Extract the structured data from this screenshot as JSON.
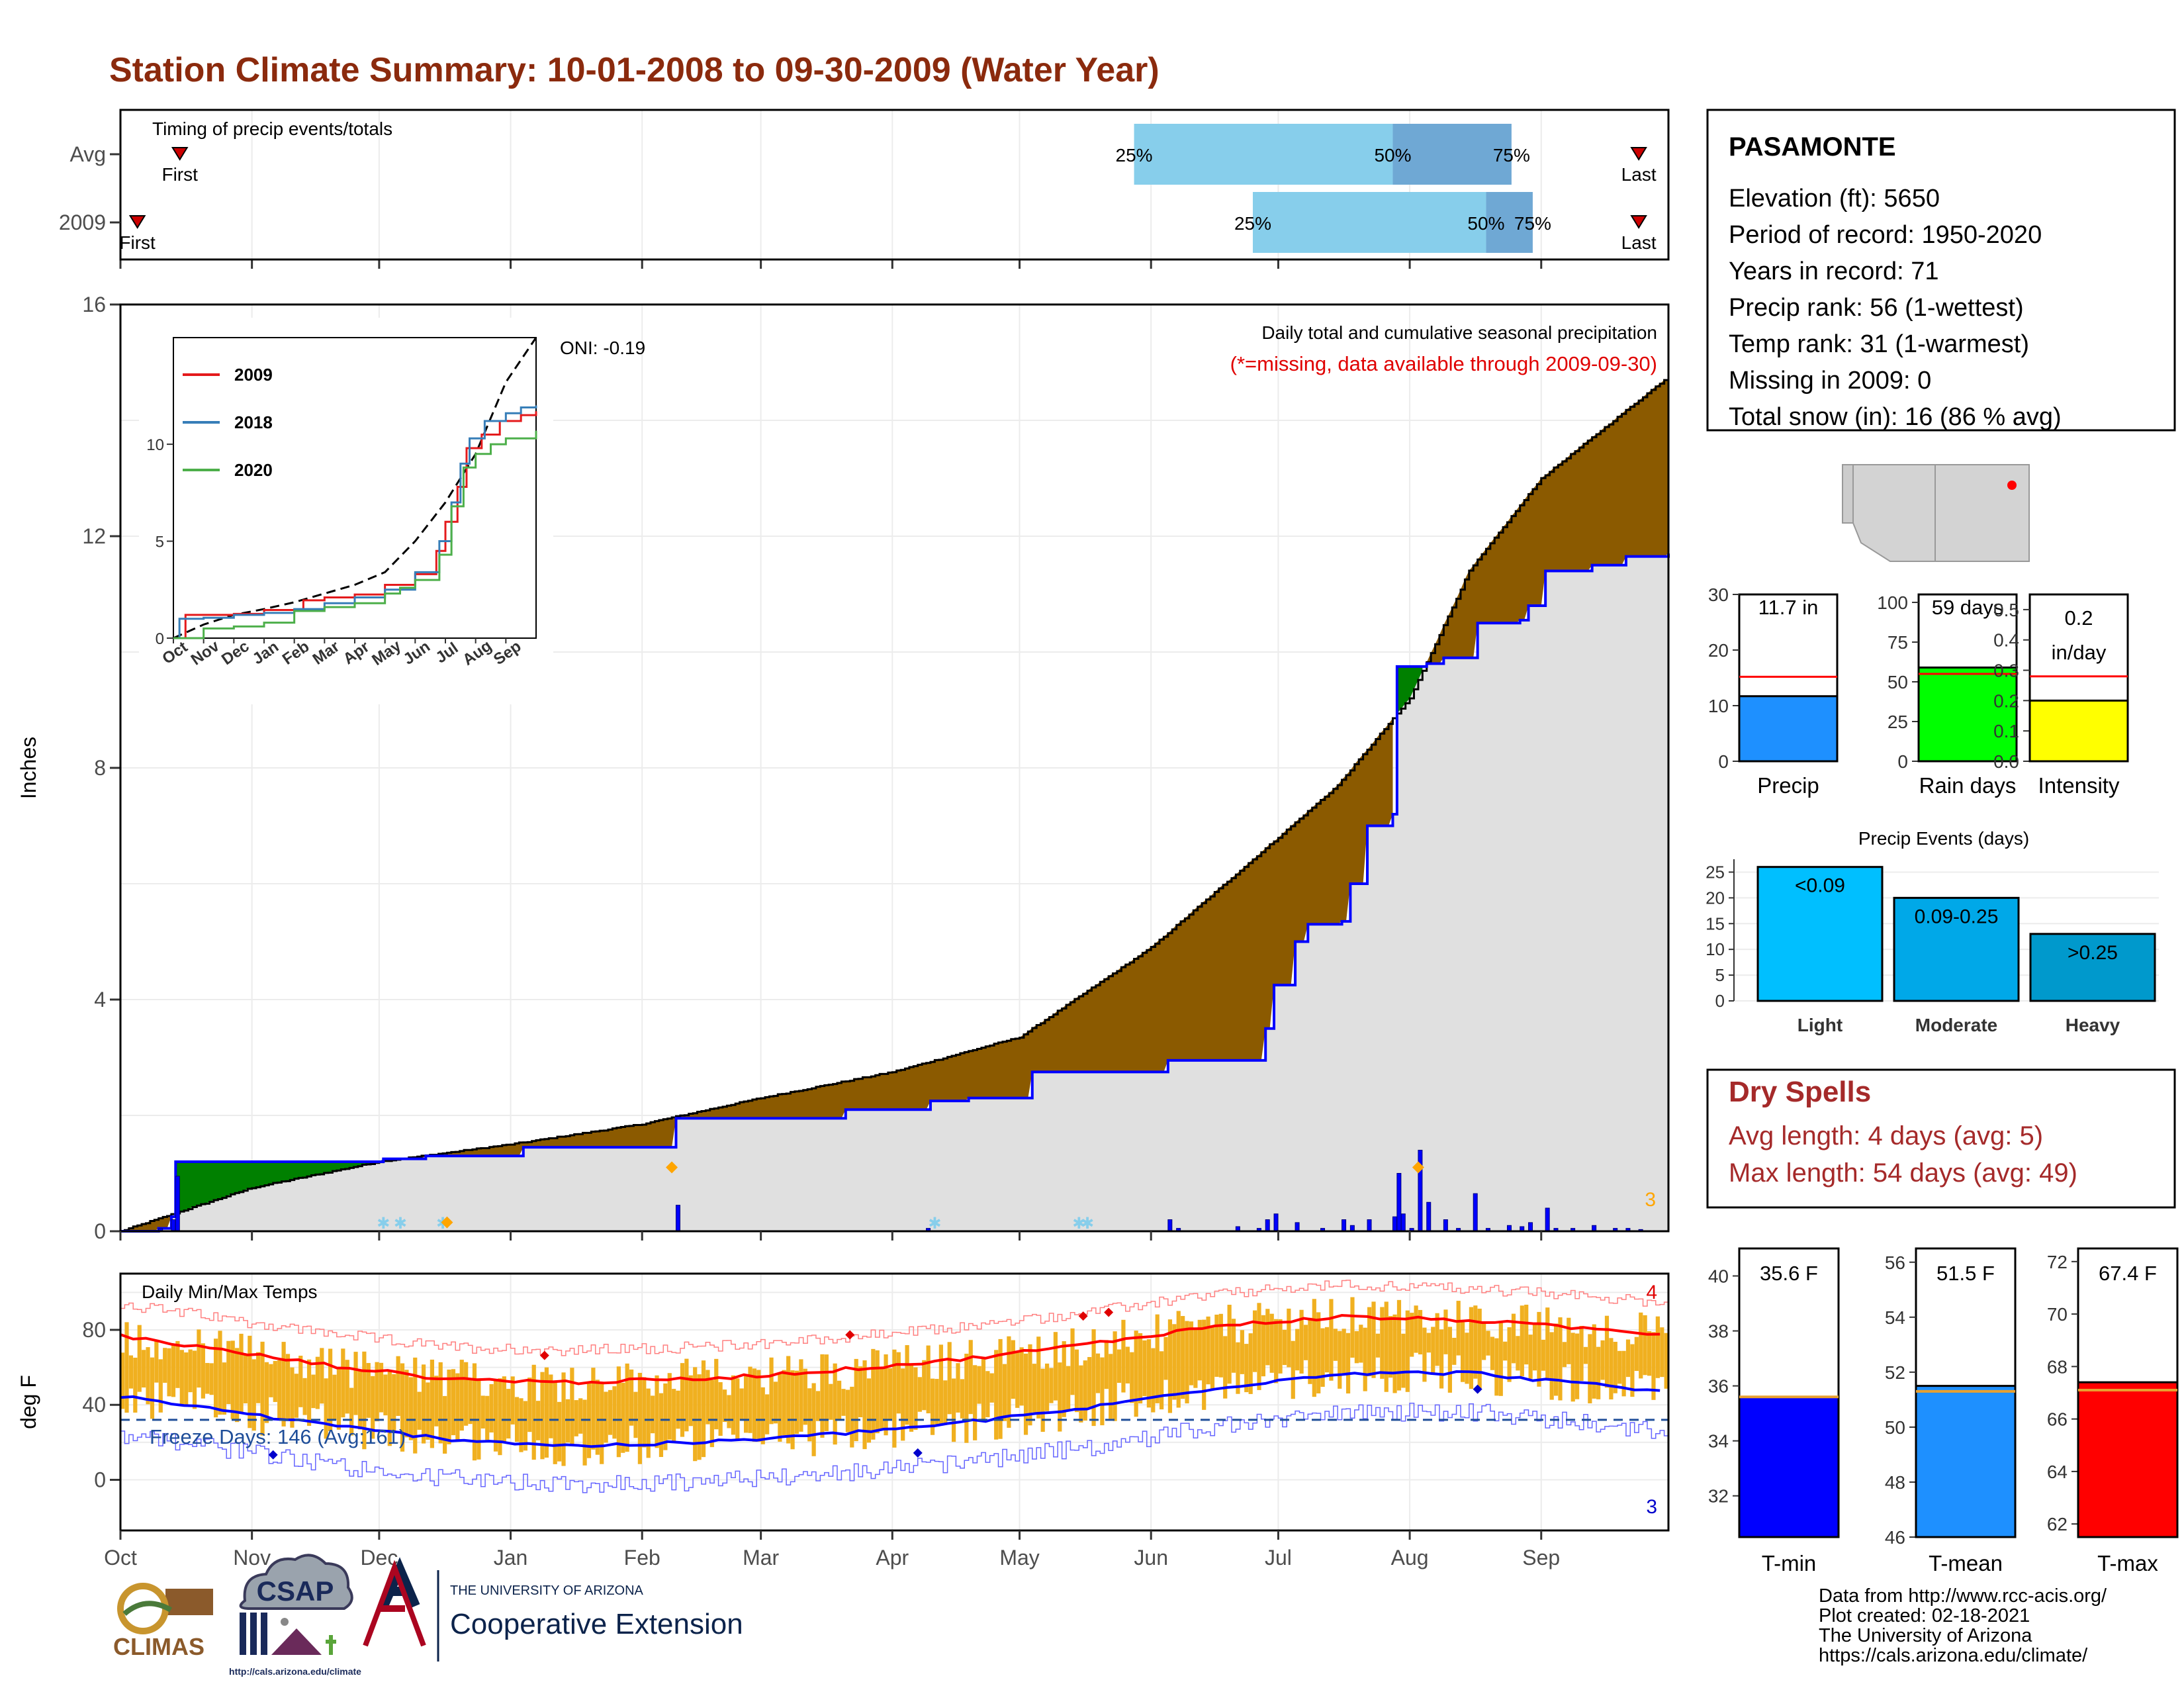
{
  "title": "Station Climate Summary: 10-01-2008 to 09-30-2009 (Water Year)",
  "timing": {
    "caption": "Timing of precip events/totals",
    "rows": [
      {
        "label": "Avg",
        "first_day": 14,
        "last_day": 358,
        "q25_day": 239,
        "q50_day": 300,
        "q75_day": 328,
        "first_label": "First",
        "last_label": "Last",
        "q25_label": "25%",
        "q50_label": "50%",
        "q75_label": "75%"
      },
      {
        "label": "2009",
        "first_day": 4,
        "last_day": 358,
        "q25_day": 267,
        "q50_day": 322,
        "q75_day": 333,
        "first_label": "First",
        "last_label": "Last",
        "q25_label": "25%",
        "q50_label": "50%",
        "q75_label": "75%"
      }
    ]
  },
  "main": {
    "ylabel": "Inches",
    "caption1": "Daily total and cumulative seasonal precipitation",
    "caption2": "(*=missing, data available through 2009-09-30)",
    "oni": "ONI: -0.19",
    "corner_count": "3",
    "yticks": [
      "0",
      "4",
      "8",
      "12",
      "16"
    ]
  },
  "inset": {
    "legend": [
      "2009",
      "2018",
      "2020"
    ],
    "yticks": [
      "0",
      "5",
      "10"
    ],
    "xticks": [
      "Oct",
      "Nov",
      "Dec",
      "Jan",
      "Feb",
      "Mar",
      "Apr",
      "May",
      "Jun",
      "Jul",
      "Aug",
      "Sep"
    ]
  },
  "temps": {
    "ylabel": "deg F",
    "caption": "Daily Min/Max Temps",
    "freeze": "Freeze Days: 146 (Avg:161)",
    "count_hi": "4",
    "count_lo": "3",
    "yticks": [
      "0",
      "40",
      "80"
    ]
  },
  "months": [
    "Oct",
    "Nov",
    "Dec",
    "Jan",
    "Feb",
    "Mar",
    "Apr",
    "May",
    "Jun",
    "Jul",
    "Aug",
    "Sep"
  ],
  "station": {
    "name": "PASAMONTE",
    "lines": [
      "Elevation (ft): 5650",
      "Period of record: 1950-2020",
      "Years in record: 71",
      "Precip rank: 56 (1-wettest)",
      "Temp rank: 31 (1-warmest)",
      "Missing in 2009: 0",
      "Total snow (in): 16 (86 % avg)"
    ]
  },
  "summary_bars": [
    {
      "label": "Precip",
      "value_text": "11.7 in",
      "value": 11.7,
      "avg": 15.2,
      "ymax": 30,
      "yticks": [
        "0",
        "10",
        "20",
        "30"
      ],
      "color": "#1e90ff"
    },
    {
      "label": "Rain days",
      "value_text": "59 days",
      "value": 59,
      "avg": 55,
      "ymax": 105,
      "yticks": [
        "0",
        "25",
        "50",
        "75",
        "100"
      ],
      "color": "#00ff00"
    },
    {
      "label": "Intensity",
      "value_text": "0.2 in/day",
      "value": 0.2,
      "avg": 0.28,
      "ymax": 0.55,
      "yticks": [
        "0.0",
        "0.1",
        "0.2",
        "0.3",
        "0.4",
        "0.5"
      ],
      "color": "#ffff00"
    }
  ],
  "events": {
    "title": "Precip Events (days)",
    "yticks": [
      "0",
      "5",
      "10",
      "15",
      "20",
      "25"
    ],
    "bars": [
      {
        "cat": "Light",
        "label": "<0.09",
        "value": 26,
        "color": "#00bfff"
      },
      {
        "cat": "Moderate",
        "label": "0.09-0.25",
        "value": 20,
        "color": "#00a8e8"
      },
      {
        "cat": "Heavy",
        "label": ">0.25",
        "value": 13,
        "color": "#0099cc"
      }
    ]
  },
  "dry_spells": {
    "title": "Dry Spells",
    "avg": "Avg length: 4 days (avg: 5)",
    "max": "Max length: 54 days (avg: 49)"
  },
  "temp_bars": [
    {
      "label": "T-min",
      "value_text": "35.6 F",
      "value": 35.6,
      "avg": 35.6,
      "ymin": 30.5,
      "ymax": 41,
      "yticks": [
        "32",
        "34",
        "36",
        "38",
        "40"
      ],
      "color": "#0000ff"
    },
    {
      "label": "T-mean",
      "value_text": "51.5 F",
      "value": 51.5,
      "avg": 51.3,
      "ymin": 46,
      "ymax": 56.5,
      "yticks": [
        "46",
        "48",
        "50",
        "52",
        "54",
        "56"
      ],
      "color": "#1e90ff"
    },
    {
      "label": "T-max",
      "value_text": "67.4 F",
      "value": 67.4,
      "avg": 67.1,
      "ymin": 61.5,
      "ymax": 72.5,
      "yticks": [
        "62",
        "64",
        "66",
        "68",
        "70",
        "72"
      ],
      "color": "#ff0000"
    }
  ],
  "credits": {
    "lines": [
      "Data from http://www.rcc-acis.org/",
      "Plot created: 02-18-2021",
      "The University of Arizona",
      "https://cals.arizona.edu/climate/"
    ],
    "climas": "CLIMAS",
    "csap": "CSAP",
    "csap_url": "http://cals.arizona.edu/climate",
    "ua_small": "THE UNIVERSITY OF ARIZONA",
    "ua_big": "Cooperative Extension"
  },
  "chart_data": [
    {
      "type": "area",
      "title": "Daily total and cumulative seasonal precipitation",
      "ylabel": "Inches",
      "ylim": [
        0,
        16
      ],
      "x": [
        "2008-10-01",
        "2008-11-01",
        "2008-12-01",
        "2009-01-01",
        "2009-02-01",
        "2009-03-01",
        "2009-04-01",
        "2009-05-01",
        "2009-06-01",
        "2009-07-01",
        "2009-07-15",
        "2009-08-01",
        "2009-08-15",
        "2009-09-01",
        "2009-09-30"
      ],
      "series": [
        {
          "name": "cumulative average",
          "values": [
            0,
            0.75,
            1.2,
            1.5,
            1.85,
            2.3,
            2.75,
            3.35,
            4.9,
            6.8,
            7.7,
            9.2,
            11.4,
            13.0,
            14.7
          ]
        },
        {
          "name": "cumulative 2009",
          "values": [
            0,
            1.2,
            1.25,
            1.45,
            1.95,
            2.1,
            2.25,
            2.75,
            2.95,
            4.25,
            5.8,
            9.8,
            10.8,
            11.25,
            11.7
          ]
        }
      ]
    },
    {
      "type": "line",
      "title": "Daily Min/Max Temps",
      "ylabel": "deg F",
      "x": [
        "Oct",
        "Nov",
        "Dec",
        "Jan",
        "Feb",
        "Mar",
        "Apr",
        "May",
        "Jun",
        "Jul",
        "Aug",
        "Sep"
      ],
      "series": [
        {
          "name": "avg max",
          "values": [
            72,
            62,
            54,
            52,
            54,
            58,
            64,
            72,
            82,
            87,
            85,
            80
          ]
        },
        {
          "name": "avg min",
          "values": [
            40,
            30,
            22,
            18,
            20,
            24,
            30,
            38,
            49,
            57,
            57,
            50
          ]
        }
      ]
    }
  ]
}
